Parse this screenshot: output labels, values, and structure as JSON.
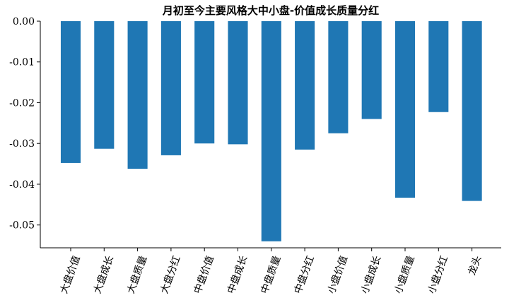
{
  "chart_data": {
    "type": "bar",
    "title": "月初至今主要风格大中小盘-价值成长质量分红",
    "xlabel": "",
    "ylabel": "",
    "categories": [
      "大盘价值",
      "大盘成长",
      "大盘质量",
      "大盘分红",
      "中盘价值",
      "中盘成长",
      "中盘质量",
      "中盘分红",
      "小盘价值",
      "小盘成长",
      "小盘质量",
      "小盘分红",
      "龙头"
    ],
    "values": [
      -0.0348,
      -0.0313,
      -0.0362,
      -0.0329,
      -0.03,
      -0.0302,
      -0.054,
      -0.0315,
      -0.0275,
      -0.024,
      -0.0433,
      -0.0223,
      -0.0441
    ],
    "yticks": [
      "0.00",
      "-0.01",
      "-0.02",
      "-0.03",
      "-0.04",
      "-0.05"
    ],
    "ytick_values": [
      0,
      -0.01,
      -0.02,
      -0.03,
      -0.04,
      -0.05
    ],
    "ylim": [
      -0.0556,
      0.0
    ],
    "bar_color": "#1f77b4",
    "grid": false,
    "legend": "none"
  }
}
